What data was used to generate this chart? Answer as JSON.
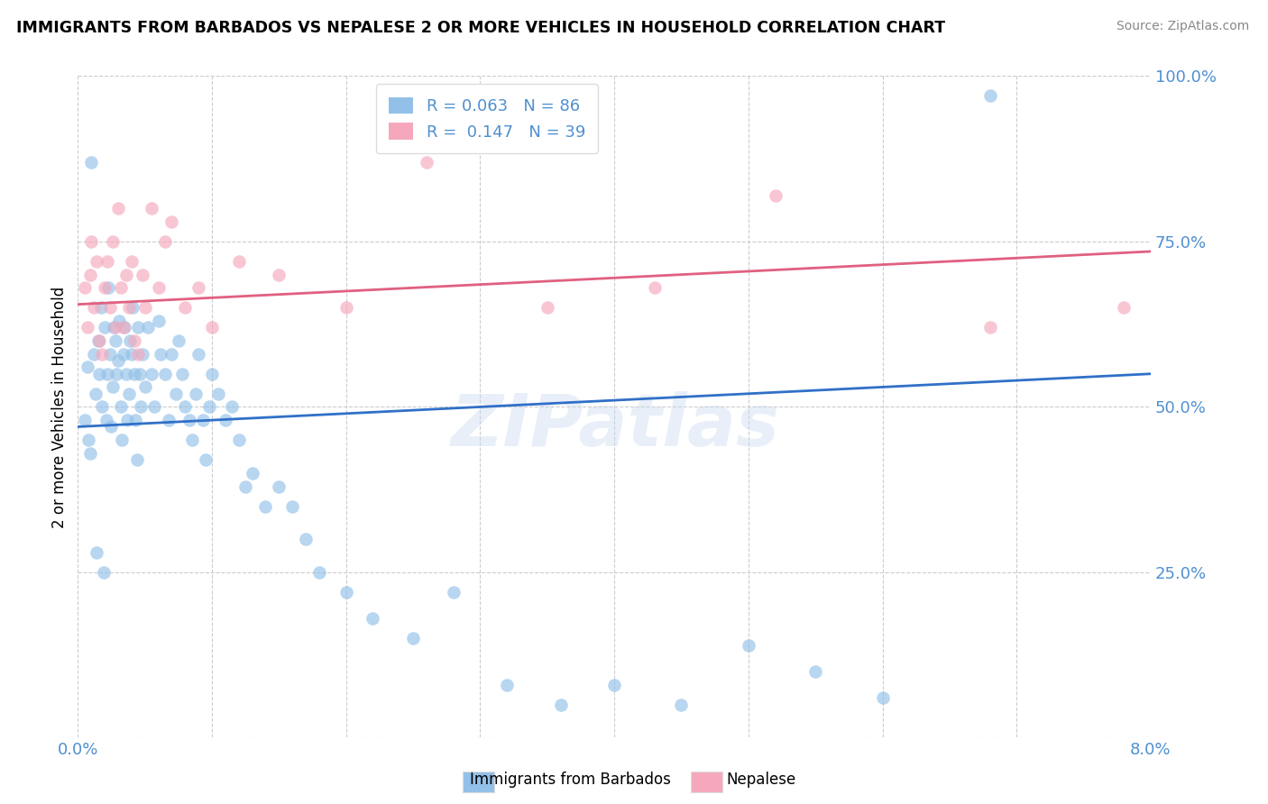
{
  "title": "IMMIGRANTS FROM BARBADOS VS NEPALESE 2 OR MORE VEHICLES IN HOUSEHOLD CORRELATION CHART",
  "source": "Source: ZipAtlas.com",
  "ylabel": "2 or more Vehicles in Household",
  "xlim": [
    0.0,
    8.0
  ],
  "ylim": [
    0.0,
    100.0
  ],
  "blue_R": 0.063,
  "blue_N": 86,
  "pink_R": 0.147,
  "pink_N": 39,
  "blue_color": "#92C0E8",
  "pink_color": "#F5A8BC",
  "blue_line_color": "#3070C8",
  "pink_line_color": "#E06080",
  "blue_line_y0": 47.0,
  "blue_line_y1": 55.0,
  "pink_line_y0": 65.5,
  "pink_line_y1": 73.5,
  "legend_label_blue": "Immigrants from Barbados",
  "legend_label_pink": "Nepalese",
  "watermark": "ZIPatlas",
  "tick_color": "#5090D0",
  "blue_scatter_x": [
    0.05,
    0.07,
    0.09,
    0.1,
    0.12,
    0.13,
    0.15,
    0.16,
    0.17,
    0.18,
    0.2,
    0.21,
    0.22,
    0.23,
    0.24,
    0.25,
    0.26,
    0.27,
    0.28,
    0.29,
    0.3,
    0.31,
    0.32,
    0.33,
    0.34,
    0.35,
    0.36,
    0.37,
    0.38,
    0.39,
    0.4,
    0.41,
    0.42,
    0.43,
    0.44,
    0.45,
    0.46,
    0.47,
    0.48,
    0.5,
    0.52,
    0.55,
    0.57,
    0.6,
    0.62,
    0.65,
    0.68,
    0.7,
    0.73,
    0.75,
    0.78,
    0.8,
    0.83,
    0.85,
    0.88,
    0.9,
    0.93,
    0.95,
    0.98,
    1.0,
    1.05,
    1.1,
    1.15,
    1.2,
    1.25,
    1.3,
    1.4,
    1.5,
    1.6,
    1.7,
    1.8,
    2.0,
    2.2,
    2.5,
    2.8,
    3.2,
    3.6,
    4.0,
    4.5,
    5.0,
    5.5,
    6.0,
    6.8,
    0.08,
    0.14,
    0.19
  ],
  "blue_scatter_y": [
    48,
    56,
    43,
    87,
    58,
    52,
    60,
    55,
    65,
    50,
    62,
    48,
    55,
    68,
    58,
    47,
    53,
    62,
    60,
    55,
    57,
    63,
    50,
    45,
    58,
    62,
    55,
    48,
    52,
    60,
    58,
    65,
    55,
    48,
    42,
    62,
    55,
    50,
    58,
    53,
    62,
    55,
    50,
    63,
    58,
    55,
    48,
    58,
    52,
    60,
    55,
    50,
    48,
    45,
    52,
    58,
    48,
    42,
    50,
    55,
    52,
    48,
    50,
    45,
    38,
    40,
    35,
    38,
    35,
    30,
    25,
    22,
    18,
    15,
    22,
    8,
    5,
    8,
    5,
    14,
    10,
    6,
    97,
    45,
    28,
    25
  ],
  "pink_scatter_x": [
    0.05,
    0.07,
    0.09,
    0.1,
    0.12,
    0.14,
    0.16,
    0.18,
    0.2,
    0.22,
    0.24,
    0.26,
    0.28,
    0.3,
    0.32,
    0.34,
    0.36,
    0.38,
    0.4,
    0.42,
    0.45,
    0.48,
    0.5,
    0.55,
    0.6,
    0.65,
    0.7,
    0.8,
    0.9,
    1.0,
    1.2,
    1.5,
    2.0,
    2.6,
    3.5,
    4.3,
    5.2,
    6.8,
    7.8
  ],
  "pink_scatter_y": [
    68,
    62,
    70,
    75,
    65,
    72,
    60,
    58,
    68,
    72,
    65,
    75,
    62,
    80,
    68,
    62,
    70,
    65,
    72,
    60,
    58,
    70,
    65,
    80,
    68,
    75,
    78,
    65,
    68,
    62,
    72,
    70,
    65,
    87,
    65,
    68,
    82,
    62,
    65
  ]
}
